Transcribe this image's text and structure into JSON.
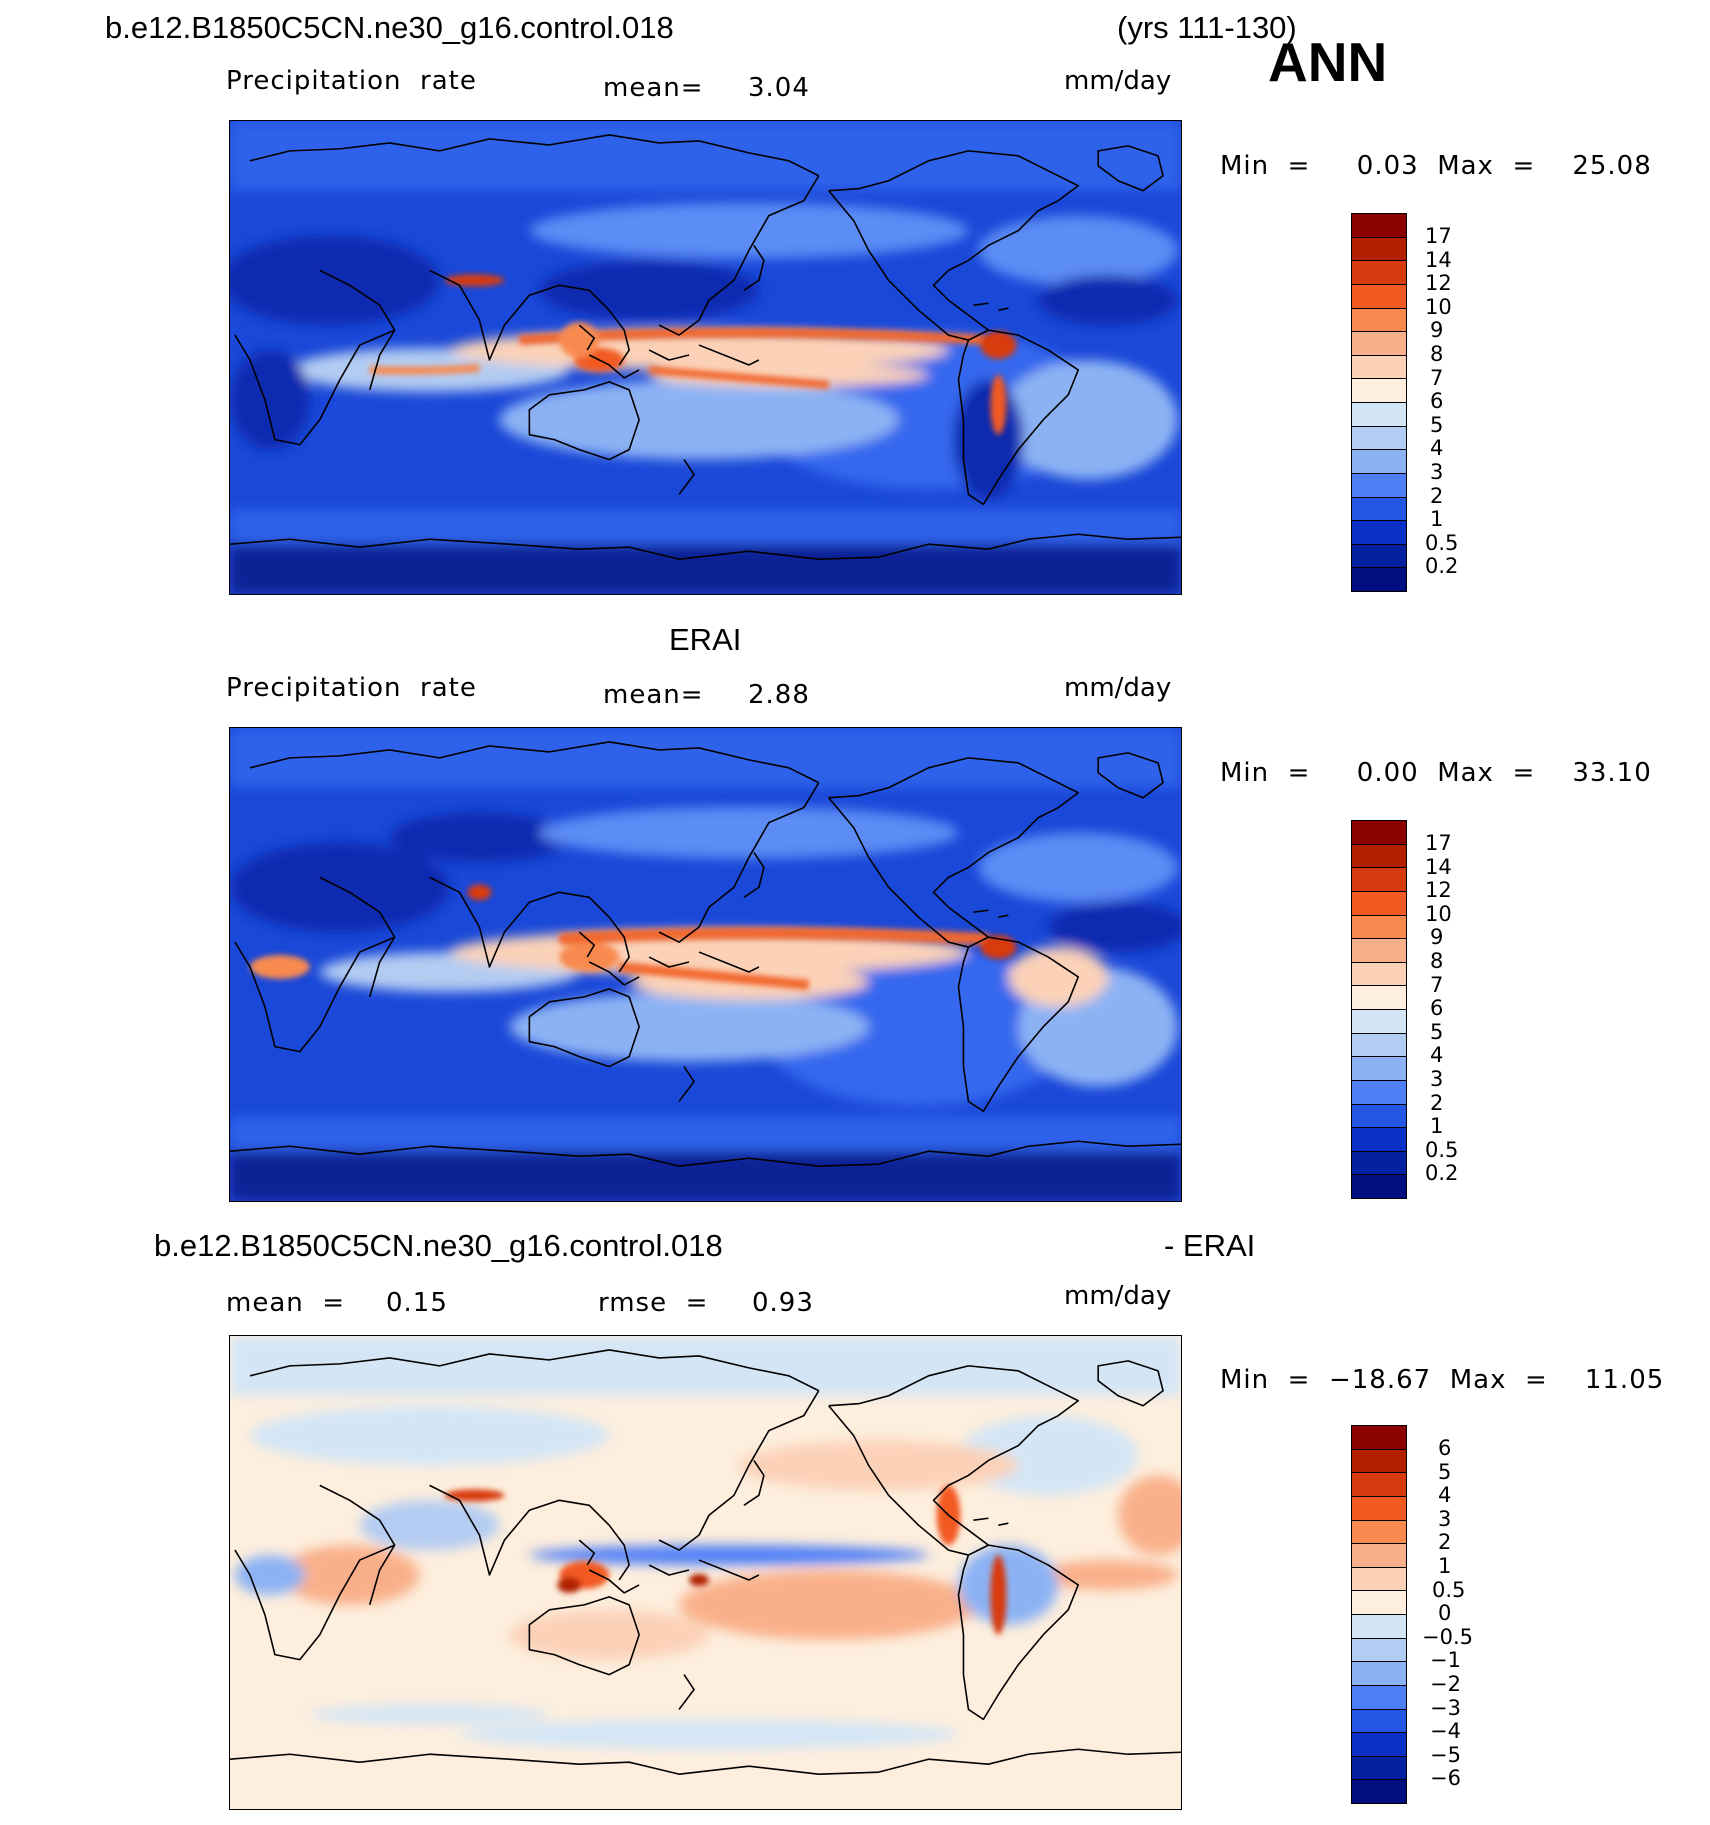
{
  "header": {
    "case_name": "b.e12.B1850C5CN.ne30_g16.control.018",
    "years": "(yrs 111-130)",
    "season": "ANN"
  },
  "panel1": {
    "left_label": "Precipitation  rate",
    "mean_label": "mean=",
    "mean_value": "3.04",
    "units": "mm/day",
    "minmax": "Min  =     0.03  Max  =    25.08"
  },
  "panel2": {
    "title": "ERAI",
    "left_label": "Precipitation  rate",
    "mean_label": "mean=",
    "mean_value": "2.88",
    "units": "mm/day",
    "minmax": "Min  =     0.00  Max  =    33.10"
  },
  "panel3": {
    "title_left": "b.e12.B1850C5CN.ne30_g16.control.018",
    "title_right": "- ERAI",
    "mean_label": "mean  =",
    "mean_value": "0.15",
    "rmse_label": "rmse  =",
    "rmse_value": "0.93",
    "units": "mm/day",
    "minmax": "Min  =  −18.67  Max  =    11.05"
  },
  "colorbar_abs": {
    "labels": [
      "17",
      "14",
      "12",
      "10",
      "9",
      "8",
      "7",
      "6",
      "5",
      "4",
      "3",
      "2",
      "1",
      "0.5",
      "0.2"
    ],
    "colors": [
      "#8b0000",
      "#b22000",
      "#d83a10",
      "#f25a22",
      "#f88a50",
      "#f9b08a",
      "#fbd2b8",
      "#fdeedd",
      "#d4e6f6",
      "#b3ccf2",
      "#8cb2f4",
      "#4f7ff7",
      "#2456e4",
      "#0a30c8",
      "#0520a0",
      "#000e80"
    ]
  },
  "colorbar_diff": {
    "labels": [
      "6",
      "5",
      "4",
      "3",
      "2",
      "1",
      "0.5",
      "0",
      "−0.5",
      "−1",
      "−2",
      "−3",
      "−4",
      "−5",
      "−6"
    ],
    "colors": [
      "#8b0000",
      "#b22000",
      "#d83a10",
      "#f25a22",
      "#f88a50",
      "#f9b08a",
      "#fbd2b8",
      "#fdeedd",
      "#d4e6f6",
      "#b3ccf2",
      "#8cb2f4",
      "#4f7ff7",
      "#2456e4",
      "#0a30c8",
      "#0520a0",
      "#000e80"
    ]
  }
}
